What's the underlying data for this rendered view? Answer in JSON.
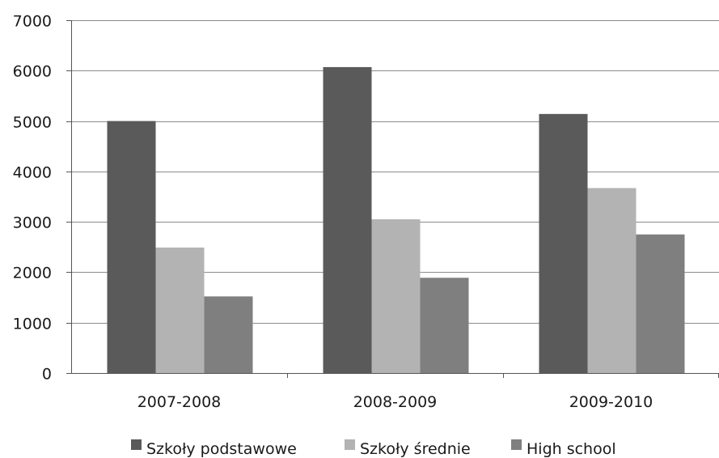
{
  "chart_data": {
    "type": "bar",
    "title": "",
    "xlabel": "",
    "ylabel": "",
    "categories": [
      "2007-2008",
      "2008-2009",
      "2009-2010"
    ],
    "series": [
      {
        "name": "Szkoły podstawowe",
        "color": "#5a5a5a",
        "values": [
          5000,
          6070,
          5140
        ]
      },
      {
        "name": "Szkoły średnie",
        "color": "#b3b3b3",
        "values": [
          2490,
          3050,
          3670
        ]
      },
      {
        "name": "High school",
        "color": "#7f7f7f",
        "values": [
          1520,
          1890,
          2750
        ]
      }
    ],
    "ylim": [
      0,
      7000
    ],
    "yticks": [
      0,
      1000,
      2000,
      3000,
      4000,
      5000,
      6000,
      7000
    ],
    "ytick_labels": [
      "0",
      "1000",
      "2000",
      "3000",
      "4000",
      "5000",
      "6000",
      "7000"
    ],
    "grid": true,
    "legend_position": "bottom"
  }
}
